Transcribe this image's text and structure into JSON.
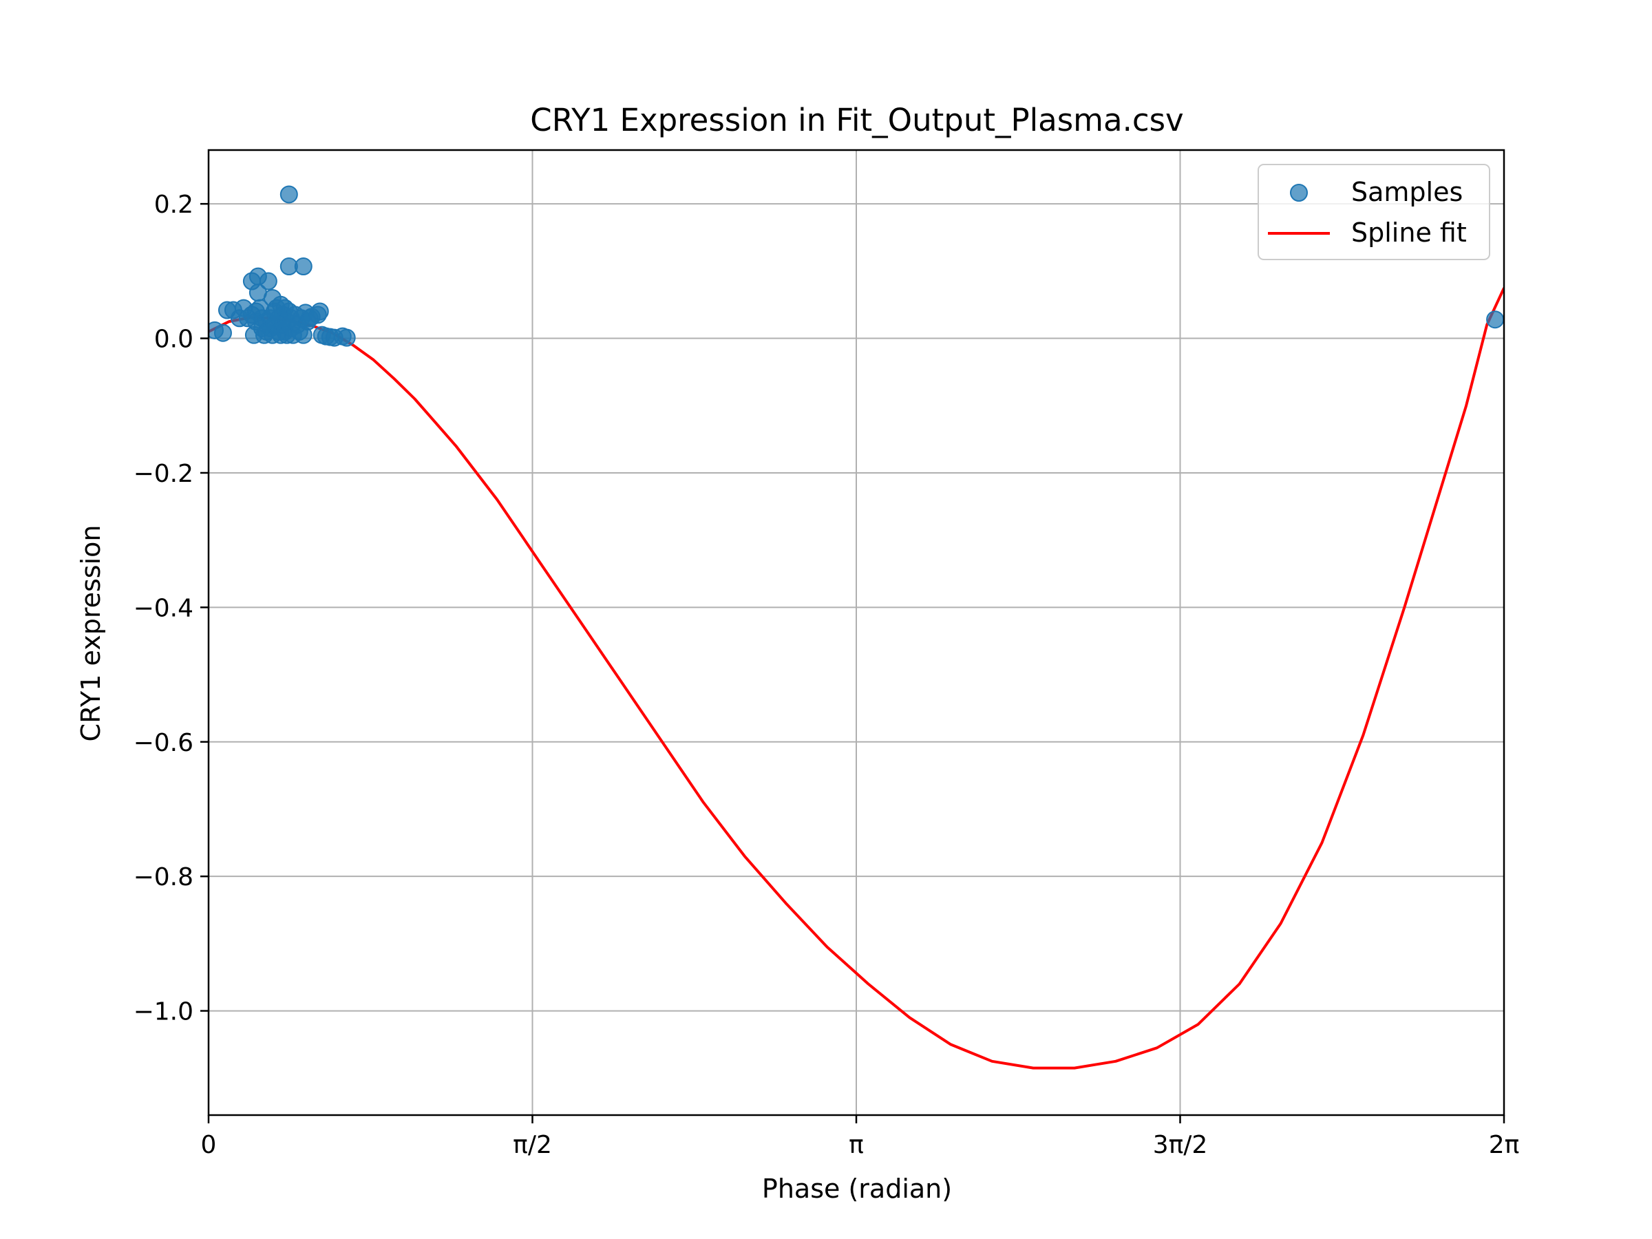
{
  "chart_data": {
    "type": "scatter",
    "title": "CRY1 Expression in Fit_Output_Plasma.csv",
    "xlabel": "Phase (radian)",
    "ylabel": "CRY1 expression",
    "xlim": [
      0,
      6.2832
    ],
    "ylim": [
      -1.155,
      0.28
    ],
    "grid": true,
    "legend_position": "top-right",
    "x_ticks": [
      {
        "value": 0,
        "label": "0"
      },
      {
        "value": 1.5708,
        "label": "π/2"
      },
      {
        "value": 3.1416,
        "label": "π"
      },
      {
        "value": 4.7124,
        "label": "3π/2"
      },
      {
        "value": 6.2832,
        "label": "2π"
      }
    ],
    "y_ticks": [
      {
        "value": 0.2,
        "label": "0.2"
      },
      {
        "value": 0.0,
        "label": "0.0"
      },
      {
        "value": -0.2,
        "label": "−0.2"
      },
      {
        "value": -0.4,
        "label": "−0.4"
      },
      {
        "value": -0.6,
        "label": "−0.6"
      },
      {
        "value": -0.8,
        "label": "−0.8"
      },
      {
        "value": -1.0,
        "label": "−1.0"
      }
    ],
    "series": [
      {
        "name": "Samples",
        "kind": "scatter",
        "color": "#1f77b4",
        "points": [
          [
            0.03,
            0.012
          ],
          [
            0.07,
            0.008
          ],
          [
            0.09,
            0.042
          ],
          [
            0.12,
            0.042
          ],
          [
            0.15,
            0.03
          ],
          [
            0.17,
            0.045
          ],
          [
            0.19,
            0.03
          ],
          [
            0.21,
            0.035
          ],
          [
            0.21,
            0.085
          ],
          [
            0.22,
            0.005
          ],
          [
            0.23,
            0.04
          ],
          [
            0.23,
            0.025
          ],
          [
            0.24,
            0.092
          ],
          [
            0.24,
            0.068
          ],
          [
            0.25,
            0.045
          ],
          [
            0.26,
            0.015
          ],
          [
            0.26,
            0.03
          ],
          [
            0.27,
            0.005
          ],
          [
            0.28,
            0.025
          ],
          [
            0.28,
            0.01
          ],
          [
            0.29,
            0.085
          ],
          [
            0.3,
            0.03
          ],
          [
            0.3,
            0.015
          ],
          [
            0.31,
            0.06
          ],
          [
            0.31,
            0.005
          ],
          [
            0.32,
            0.04
          ],
          [
            0.32,
            0.02
          ],
          [
            0.33,
            0.045
          ],
          [
            0.34,
            0.01
          ],
          [
            0.34,
            0.03
          ],
          [
            0.35,
            0.05
          ],
          [
            0.35,
            0.005
          ],
          [
            0.36,
            0.02
          ],
          [
            0.36,
            0.035
          ],
          [
            0.37,
            0.01
          ],
          [
            0.37,
            0.045
          ],
          [
            0.38,
            0.005
          ],
          [
            0.38,
            0.025
          ],
          [
            0.39,
            0.214
          ],
          [
            0.39,
            0.107
          ],
          [
            0.39,
            0.04
          ],
          [
            0.4,
            0.015
          ],
          [
            0.4,
            0.03
          ],
          [
            0.41,
            0.005
          ],
          [
            0.42,
            0.035
          ],
          [
            0.43,
            0.02
          ],
          [
            0.44,
            0.01
          ],
          [
            0.45,
            0.03
          ],
          [
            0.46,
            0.005
          ],
          [
            0.46,
            0.107
          ],
          [
            0.47,
            0.038
          ],
          [
            0.48,
            0.025
          ],
          [
            0.49,
            0.03
          ],
          [
            0.5,
            0.032
          ],
          [
            0.53,
            0.035
          ],
          [
            0.54,
            0.04
          ],
          [
            0.55,
            0.005
          ],
          [
            0.57,
            0.003
          ],
          [
            0.59,
            0.002
          ],
          [
            0.61,
            0.001
          ],
          [
            0.65,
            0.003
          ],
          [
            0.67,
            0.001
          ],
          [
            6.24,
            0.028
          ]
        ]
      },
      {
        "name": "Spline fit",
        "kind": "line",
        "color": "#ff0000",
        "points": [
          [
            0.0,
            0.01
          ],
          [
            0.1,
            0.025
          ],
          [
            0.2,
            0.031
          ],
          [
            0.3,
            0.03
          ],
          [
            0.4,
            0.026
          ],
          [
            0.5,
            0.019
          ],
          [
            0.6,
            0.008
          ],
          [
            0.7,
            -0.01
          ],
          [
            0.8,
            -0.032
          ],
          [
            0.9,
            -0.06
          ],
          [
            1.0,
            -0.09
          ],
          [
            1.1,
            -0.125
          ],
          [
            1.2,
            -0.16
          ],
          [
            1.3,
            -0.2
          ],
          [
            1.4,
            -0.24
          ],
          [
            1.5,
            -0.285
          ],
          [
            1.6,
            -0.33
          ],
          [
            1.8,
            -0.42
          ],
          [
            2.0,
            -0.51
          ],
          [
            2.2,
            -0.6
          ],
          [
            2.4,
            -0.69
          ],
          [
            2.6,
            -0.77
          ],
          [
            2.8,
            -0.84
          ],
          [
            3.0,
            -0.905
          ],
          [
            3.2,
            -0.96
          ],
          [
            3.4,
            -1.01
          ],
          [
            3.6,
            -1.05
          ],
          [
            3.8,
            -1.075
          ],
          [
            4.0,
            -1.085
          ],
          [
            4.2,
            -1.085
          ],
          [
            4.3,
            -1.08
          ],
          [
            4.4,
            -1.075
          ],
          [
            4.6,
            -1.055
          ],
          [
            4.8,
            -1.02
          ],
          [
            5.0,
            -0.96
          ],
          [
            5.2,
            -0.87
          ],
          [
            5.4,
            -0.75
          ],
          [
            5.6,
            -0.59
          ],
          [
            5.8,
            -0.4
          ],
          [
            6.0,
            -0.2
          ],
          [
            6.1,
            -0.1
          ],
          [
            6.2,
            0.02
          ],
          [
            6.2832,
            0.075
          ]
        ]
      }
    ]
  }
}
